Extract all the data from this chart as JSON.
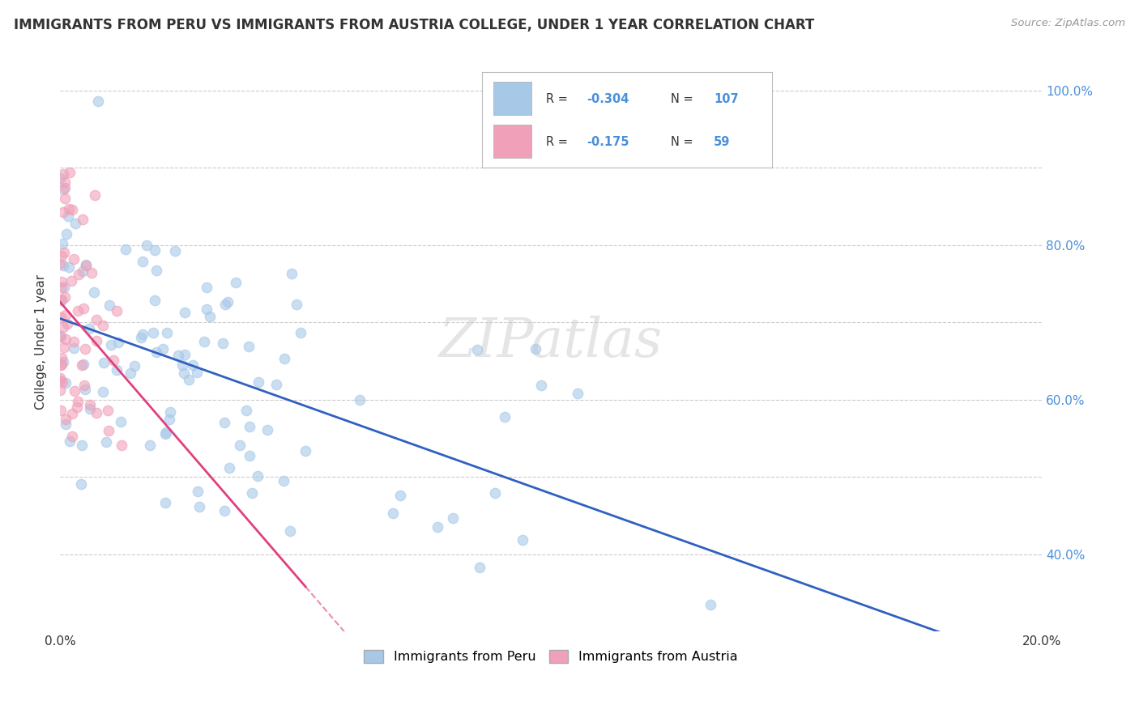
{
  "title": "IMMIGRANTS FROM PERU VS IMMIGRANTS FROM AUSTRIA COLLEGE, UNDER 1 YEAR CORRELATION CHART",
  "source_text": "Source: ZipAtlas.com",
  "ylabel": "College, Under 1 year",
  "x_min": 0.0,
  "x_max": 0.2,
  "y_min": 0.3,
  "y_max": 1.05,
  "color_peru": "#A8C8E8",
  "color_austria": "#F0A0B8",
  "color_line_peru": "#3060C0",
  "color_line_austria": "#E04080",
  "watermark_text": "ZIPatlas",
  "background_color": "#FFFFFF",
  "legend_r1": "-0.304",
  "legend_n1": "107",
  "legend_r2": "-0.175",
  "legend_n2": "59",
  "peru_seed": 12345,
  "austria_seed": 67890
}
